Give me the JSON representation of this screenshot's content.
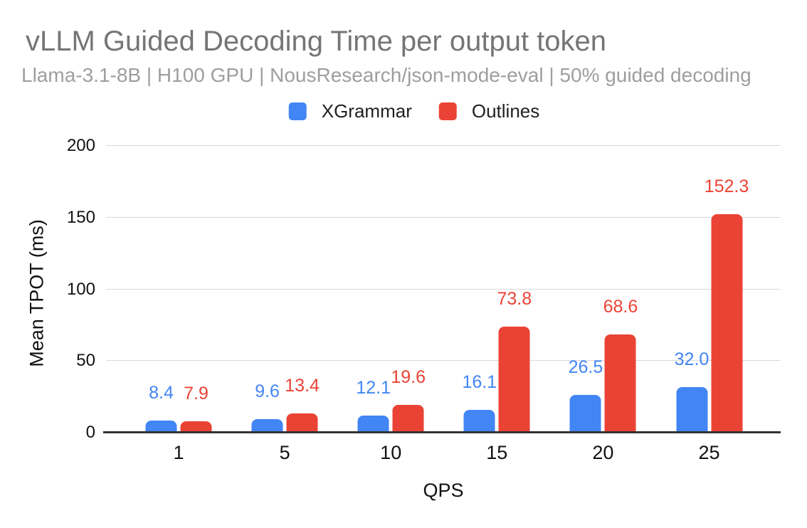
{
  "title": "vLLM Guided Decoding Time per output token",
  "subtitle": "Llama-3.1-8B | H100 GPU | NousResearch/json-mode-eval | 50% guided decoding",
  "colors": {
    "xgrammar_blue": "#4285F4",
    "outlines_red": "#EA4335",
    "title_gray": "#757575",
    "subtitle_gray": "#9E9E9E",
    "gridline": "#D9D9D9",
    "axis_baseline": "#333333",
    "axis_text": "#111111"
  },
  "chart_data": {
    "type": "bar",
    "title": "vLLM Guided Decoding Time per output token",
    "subtitle": "Llama-3.1-8B | H100 GPU | NousResearch/json-mode-eval | 50% guided decoding",
    "xlabel": "QPS",
    "ylabel": "Mean TPOT (ms)",
    "categories": [
      "1",
      "5",
      "10",
      "15",
      "20",
      "25"
    ],
    "series": [
      {
        "name": "XGrammar",
        "color": "#4285F4",
        "values": [
          8.4,
          9.6,
          12.1,
          16.1,
          26.5,
          32.0
        ],
        "labels": [
          "8.4",
          "9.6",
          "12.1",
          "16.1",
          "26.5",
          "32.0"
        ]
      },
      {
        "name": "Outlines",
        "color": "#EA4335",
        "values": [
          7.9,
          13.4,
          19.6,
          73.8,
          68.6,
          152.3
        ],
        "labels": [
          "7.9",
          "13.4",
          "19.6",
          "73.8",
          "68.6",
          "152.3"
        ]
      }
    ],
    "ylim": [
      0,
      200
    ],
    "yticks": [
      0,
      50,
      100,
      150,
      200
    ],
    "ytick_labels": [
      "0",
      "50",
      "100",
      "150",
      "200"
    ],
    "grid": true,
    "legend_position": "top",
    "value_labels_shown": true
  }
}
